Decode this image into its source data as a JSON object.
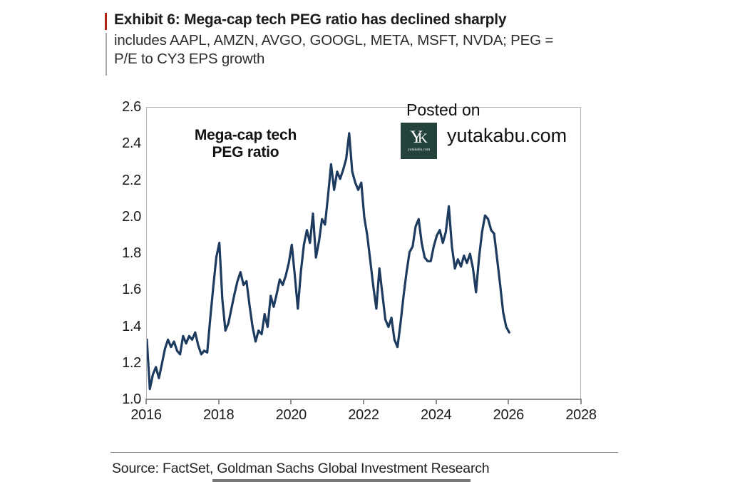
{
  "page": {
    "title": "Exhibit 6: Mega-cap tech PEG ratio has declined sharply",
    "subtitle_line1": "includes AAPL, AMZN, AVGO, GOOGL, META, MSFT, NVDA; PEG =",
    "subtitle_line2": "P/E to CY3 EPS growth",
    "source": "Source: FactSet, Goldman Sachs Global Investment Research",
    "accent_color": "#b02418"
  },
  "watermark": {
    "posted_on": "Posted on",
    "site": "yutakabu.com",
    "logo_letter_y": "Y",
    "logo_letter_k": "K",
    "logo_caption": "yutakabu.com",
    "logo_bg_color": "#24423c"
  },
  "chart_data": {
    "type": "line",
    "title": "Mega-cap tech PEG ratio",
    "annotation_line1": "Mega-cap tech",
    "annotation_line2": "PEG ratio",
    "xlabel": "",
    "ylabel": "",
    "line_color": "#1d3a5f",
    "xlim": [
      2016,
      2028
    ],
    "ylim": [
      1.0,
      2.6
    ],
    "xticks": [
      2016,
      2018,
      2020,
      2022,
      2024,
      2026,
      2028
    ],
    "yticks": [
      1.0,
      1.2,
      1.4,
      1.6,
      1.8,
      2.0,
      2.2,
      2.4,
      2.6
    ],
    "grid": false,
    "legend": false,
    "x": [
      2016.0,
      2016.083,
      2016.167,
      2016.25,
      2016.333,
      2016.417,
      2016.5,
      2016.583,
      2016.667,
      2016.75,
      2016.833,
      2016.917,
      2017.0,
      2017.083,
      2017.167,
      2017.25,
      2017.333,
      2017.417,
      2017.5,
      2017.583,
      2017.667,
      2017.75,
      2017.833,
      2017.917,
      2018.0,
      2018.083,
      2018.167,
      2018.25,
      2018.333,
      2018.417,
      2018.5,
      2018.583,
      2018.667,
      2018.75,
      2018.833,
      2018.917,
      2019.0,
      2019.083,
      2019.167,
      2019.25,
      2019.333,
      2019.417,
      2019.5,
      2019.583,
      2019.667,
      2019.75,
      2019.833,
      2019.917,
      2020.0,
      2020.083,
      2020.167,
      2020.25,
      2020.333,
      2020.417,
      2020.5,
      2020.583,
      2020.667,
      2020.75,
      2020.833,
      2020.917,
      2021.0,
      2021.083,
      2021.167,
      2021.25,
      2021.333,
      2021.417,
      2021.5,
      2021.583,
      2021.667,
      2021.75,
      2021.833,
      2021.917,
      2022.0,
      2022.083,
      2022.167,
      2022.25,
      2022.333,
      2022.417,
      2022.5,
      2022.583,
      2022.667,
      2022.75,
      2022.833,
      2022.917,
      2023.0,
      2023.083,
      2023.167,
      2023.25,
      2023.333,
      2023.417,
      2023.5,
      2023.583,
      2023.667,
      2023.75,
      2023.833,
      2023.917,
      2024.0,
      2024.083,
      2024.167,
      2024.25,
      2024.333,
      2024.417,
      2024.5,
      2024.583,
      2024.667,
      2024.75,
      2024.833,
      2024.917,
      2025.0,
      2025.083,
      2025.167,
      2025.25,
      2025.333,
      2025.417,
      2025.5,
      2025.583,
      2025.667,
      2025.75,
      2025.833,
      2025.917,
      2026.0
    ],
    "values": [
      1.33,
      1.06,
      1.14,
      1.18,
      1.12,
      1.2,
      1.28,
      1.33,
      1.29,
      1.32,
      1.27,
      1.25,
      1.35,
      1.31,
      1.35,
      1.33,
      1.37,
      1.3,
      1.25,
      1.27,
      1.26,
      1.45,
      1.62,
      1.78,
      1.86,
      1.55,
      1.38,
      1.42,
      1.5,
      1.58,
      1.65,
      1.7,
      1.63,
      1.65,
      1.52,
      1.4,
      1.32,
      1.38,
      1.36,
      1.47,
      1.4,
      1.57,
      1.51,
      1.58,
      1.66,
      1.63,
      1.68,
      1.75,
      1.85,
      1.68,
      1.5,
      1.7,
      1.85,
      1.93,
      1.86,
      2.02,
      1.78,
      1.87,
      1.99,
      1.96,
      2.12,
      2.29,
      2.15,
      2.25,
      2.21,
      2.26,
      2.32,
      2.46,
      2.25,
      2.19,
      2.15,
      2.19,
      2.0,
      1.9,
      1.76,
      1.62,
      1.5,
      1.72,
      1.58,
      1.44,
      1.4,
      1.45,
      1.33,
      1.29,
      1.42,
      1.57,
      1.7,
      1.81,
      1.84,
      1.95,
      1.99,
      1.86,
      1.78,
      1.76,
      1.76,
      1.84,
      1.9,
      1.93,
      1.86,
      1.92,
      2.06,
      1.84,
      1.72,
      1.77,
      1.73,
      1.79,
      1.75,
      1.8,
      1.72,
      1.59,
      1.78,
      1.92,
      2.01,
      1.99,
      1.93,
      1.91,
      1.77,
      1.63,
      1.48,
      1.4,
      1.37
    ]
  }
}
